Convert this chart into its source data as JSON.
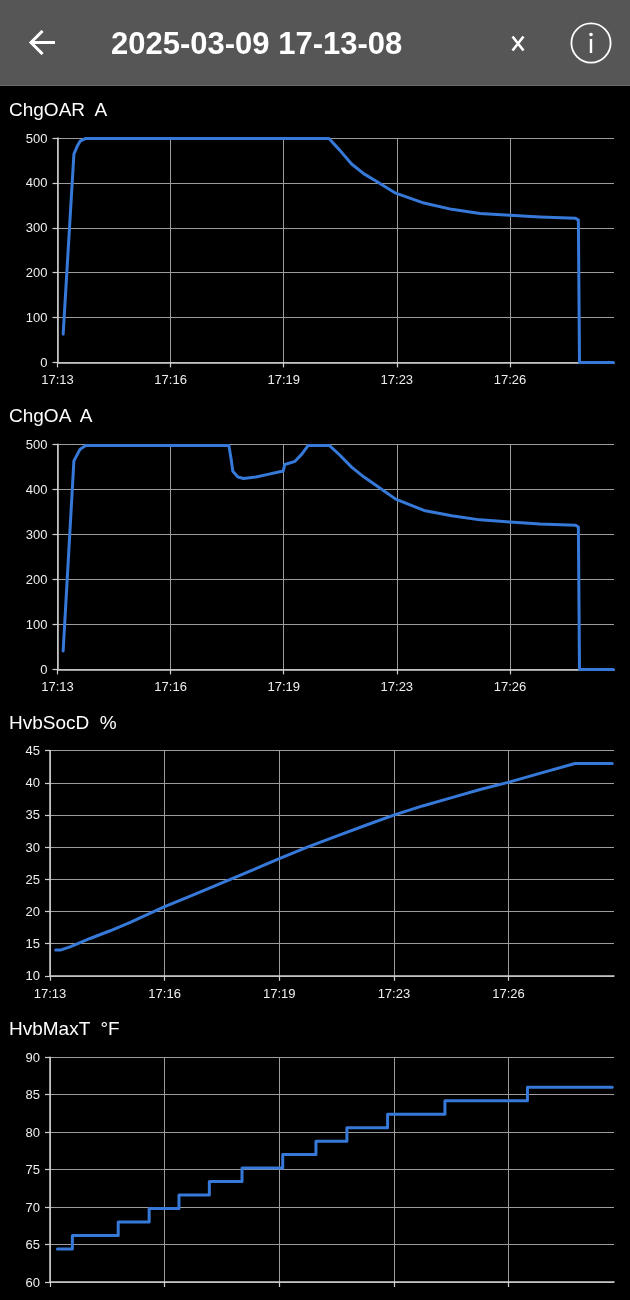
{
  "chart_data": [
    {
      "type": "line",
      "title": "2025-03-09 17-13-08",
      "ylabel": "ChgOAR  A",
      "x": [
        "2025-03-09T17:13:18",
        "2025-03-09T17:13:37",
        "2025-03-09T17:13:43",
        "2025-03-09T17:13:48",
        "2025-03-09T17:13:58",
        "2025-03-09T17:14:09",
        "2025-03-09T17:21:08",
        "2025-03-09T17:21:27",
        "2025-03-09T17:21:48",
        "2025-03-09T17:22:10",
        "2025-03-09T17:22:31",
        "2025-03-09T17:23:06",
        "2025-03-09T17:23:56",
        "2025-03-09T17:24:45",
        "2025-03-09T17:25:35",
        "2025-03-09T17:26:28",
        "2025-03-09T17:27:21",
        "2025-03-09T17:28:24",
        "2025-03-09T17:28:29",
        "2025-03-09T17:28:31",
        "2025-03-09T17:29:31"
      ],
      "values": [
        63,
        464,
        482,
        493,
        499,
        499,
        499,
        473,
        442,
        420,
        404,
        377,
        355,
        341,
        332,
        328,
        324,
        321,
        317,
        0,
        0
      ],
      "color": "#3779d9",
      "xlim": [
        "2025-03-09T17:13:08",
        "2025-03-09T17:29:32"
      ],
      "ylim": [
        0,
        500
      ],
      "xticks": [
        {
          "value": "2025-03-09T17:13:08",
          "label": "17:13"
        },
        {
          "value": "2025-03-09T17:16:28",
          "label": "17:16"
        },
        {
          "value": "2025-03-09T17:19:48",
          "label": "17:19"
        },
        {
          "value": "2025-03-09T17:23:08",
          "label": "17:23"
        },
        {
          "value": "2025-03-09T17:26:28",
          "label": "17:26"
        }
      ],
      "yticks": [
        0,
        100,
        200,
        300,
        400,
        500
      ],
      "grid": true,
      "marker": "none",
      "line_style": "solid"
    },
    {
      "type": "line",
      "ylabel": "ChgOA  A",
      "x": [
        "2025-03-09T17:13:18",
        "2025-03-09T17:13:37",
        "2025-03-09T17:13:48",
        "2025-03-09T17:13:58",
        "2025-03-09T17:14:09",
        "2025-03-09T17:18:11",
        "2025-03-09T17:18:15",
        "2025-03-09T17:18:18",
        "2025-03-09T17:18:27",
        "2025-03-09T17:18:37",
        "2025-03-09T17:18:59",
        "2025-03-09T17:19:20",
        "2025-03-09T17:19:41",
        "2025-03-09T17:19:47",
        "2025-03-09T17:19:50",
        "2025-03-09T17:20:08",
        "2025-03-09T17:20:20",
        "2025-03-09T17:20:31",
        "2025-03-09T17:21:09",
        "2025-03-09T17:21:27",
        "2025-03-09T17:21:48",
        "2025-03-09T17:22:10",
        "2025-03-09T17:22:31",
        "2025-03-09T17:23:06",
        "2025-03-09T17:23:56",
        "2025-03-09T17:24:45",
        "2025-03-09T17:25:35",
        "2025-03-09T17:26:28",
        "2025-03-09T17:27:21",
        "2025-03-09T17:28:24",
        "2025-03-09T17:28:29",
        "2025-03-09T17:28:31",
        "2025-03-09T17:29:31"
      ],
      "values": [
        41,
        463,
        489,
        497,
        497,
        497,
        467,
        440,
        427,
        424,
        427,
        433,
        439,
        440,
        455,
        462,
        478,
        497,
        497,
        476,
        449,
        427,
        409,
        378,
        353,
        341,
        332,
        327,
        323,
        320,
        316,
        0,
        0
      ],
      "color": "#3779d9",
      "xlim": [
        "2025-03-09T17:13:08",
        "2025-03-09T17:29:32"
      ],
      "ylim": [
        0,
        500
      ],
      "xticks": [
        {
          "value": "2025-03-09T17:13:08",
          "label": "17:13"
        },
        {
          "value": "2025-03-09T17:16:28",
          "label": "17:16"
        },
        {
          "value": "2025-03-09T17:19:48",
          "label": "17:19"
        },
        {
          "value": "2025-03-09T17:23:08",
          "label": "17:23"
        },
        {
          "value": "2025-03-09T17:26:28",
          "label": "17:26"
        }
      ],
      "yticks": [
        0,
        100,
        200,
        300,
        400,
        500
      ],
      "grid": true,
      "marker": "none",
      "line_style": "solid"
    },
    {
      "type": "line",
      "ylabel": "HvbSocD  %",
      "x": [
        "2025-03-09T17:13:18",
        "2025-03-09T17:13:26",
        "2025-03-09T17:13:43",
        "2025-03-09T17:14:18",
        "2025-03-09T17:14:53",
        "2025-03-09T17:15:28",
        "2025-03-09T17:16:27",
        "2025-03-09T17:17:16",
        "2025-03-09T17:18:07",
        "2025-03-09T17:18:58",
        "2025-03-09T17:19:48",
        "2025-03-09T17:20:37",
        "2025-03-09T17:21:28",
        "2025-03-09T17:22:19",
        "2025-03-09T17:23:09",
        "2025-03-09T17:23:58",
        "2025-03-09T17:24:49",
        "2025-03-09T17:25:40",
        "2025-03-09T17:26:29",
        "2025-03-09T17:27:24",
        "2025-03-09T17:28:24",
        "2025-03-09T17:29:29"
      ],
      "values": [
        14,
        14,
        14.5,
        15.8,
        17,
        18.3,
        20.7,
        22.5,
        24.4,
        26.3,
        28.2,
        30,
        31.7,
        33.4,
        35,
        36.4,
        37.7,
        39,
        40.1,
        41.5,
        43,
        43
      ],
      "color": "#3779d9",
      "xlim": [
        "2025-03-09T17:13:08",
        "2025-03-09T17:29:32"
      ],
      "ylim": [
        10,
        45
      ],
      "xticks": [
        {
          "value": "2025-03-09T17:13:08",
          "label": "17:13"
        },
        {
          "value": "2025-03-09T17:16:28",
          "label": "17:16"
        },
        {
          "value": "2025-03-09T17:19:48",
          "label": "17:19"
        },
        {
          "value": "2025-03-09T17:23:08",
          "label": "17:23"
        },
        {
          "value": "2025-03-09T17:26:28",
          "label": "17:26"
        }
      ],
      "yticks": [
        10,
        15,
        20,
        25,
        30,
        35,
        40,
        45
      ],
      "grid": true,
      "marker": "none",
      "line_style": "solid"
    },
    {
      "type": "step",
      "ylabel": "HvbMaxT  °F",
      "x": [
        "2025-03-09T17:13:21",
        "2025-03-09T17:13:47",
        "2025-03-09T17:15:07",
        "2025-03-09T17:16:01",
        "2025-03-09T17:16:53",
        "2025-03-09T17:17:46",
        "2025-03-09T17:18:43",
        "2025-03-09T17:19:54",
        "2025-03-09T17:20:52",
        "2025-03-09T17:21:46",
        "2025-03-09T17:22:57",
        "2025-03-09T17:24:37",
        "2025-03-09T17:27:01",
        "2025-03-09T17:29:29"
      ],
      "values": [
        64.4,
        66.2,
        68,
        69.8,
        71.6,
        73.4,
        75.2,
        77,
        78.8,
        80.6,
        82.4,
        84.2,
        86,
        86
      ],
      "color": "#3779d9",
      "xlim": [
        "2025-03-09T17:13:08",
        "2025-03-09T17:29:32"
      ],
      "ylim": [
        60,
        90
      ],
      "xticks": [
        {
          "value": "2025-03-09T17:13:08",
          "label": null
        },
        {
          "value": "2025-03-09T17:16:28",
          "label": null
        },
        {
          "value": "2025-03-09T17:19:48",
          "label": null
        },
        {
          "value": "2025-03-09T17:23:08",
          "label": null
        },
        {
          "value": "2025-03-09T17:26:28",
          "label": null
        }
      ],
      "yticks": [
        60,
        65,
        70,
        75,
        80,
        85,
        90
      ],
      "grid": true,
      "tick_labels": "y",
      "marker": "none",
      "line_style": "solid"
    }
  ]
}
